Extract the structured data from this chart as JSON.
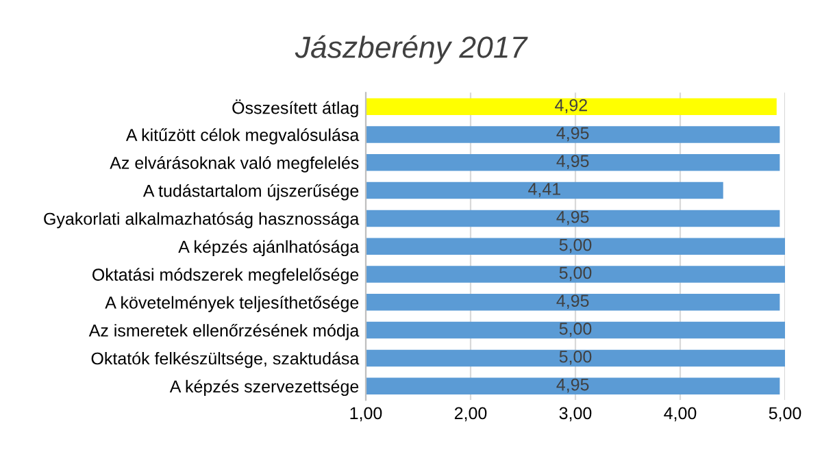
{
  "chart_data": {
    "type": "bar",
    "orientation": "horizontal",
    "title": "Jászberény 2017",
    "categories": [
      "Összesített átlag",
      "A kitűzött célok megvalósulása",
      "Az elvárásoknak való megfelelés",
      "A tudástartalom újszerűsége",
      "Gyakorlati alkalmazhatóság hasznossága",
      "A képzés ajánlhatósága",
      "Oktatási módszerek megfelelősége",
      "A követelmények teljesíthetősége",
      "Az ismeretek ellenőrzésének módja",
      "Oktatók felkészültsége, szaktudása",
      "A képzés szervezettsége"
    ],
    "values": [
      4.92,
      4.95,
      4.95,
      4.41,
      4.95,
      5.0,
      5.0,
      4.95,
      5.0,
      5.0,
      4.95
    ],
    "colors": [
      "#ffff00",
      "#5b9bd5",
      "#5b9bd5",
      "#5b9bd5",
      "#5b9bd5",
      "#5b9bd5",
      "#5b9bd5",
      "#5b9bd5",
      "#5b9bd5",
      "#5b9bd5",
      "#5b9bd5"
    ],
    "value_labels": [
      "4,92",
      "4,95",
      "4,95",
      "4,41",
      "4,95",
      "5,00",
      "5,00",
      "4,95",
      "5,00",
      "5,00",
      "4,95"
    ],
    "xlim": [
      1,
      5
    ],
    "xticks": [
      {
        "value": 1,
        "label": "1,00"
      },
      {
        "value": 2,
        "label": "2,00"
      },
      {
        "value": 3,
        "label": "3,00"
      },
      {
        "value": 4,
        "label": "4,00"
      },
      {
        "value": 5,
        "label": "5,00"
      }
    ],
    "grid": "x",
    "legend": false
  }
}
